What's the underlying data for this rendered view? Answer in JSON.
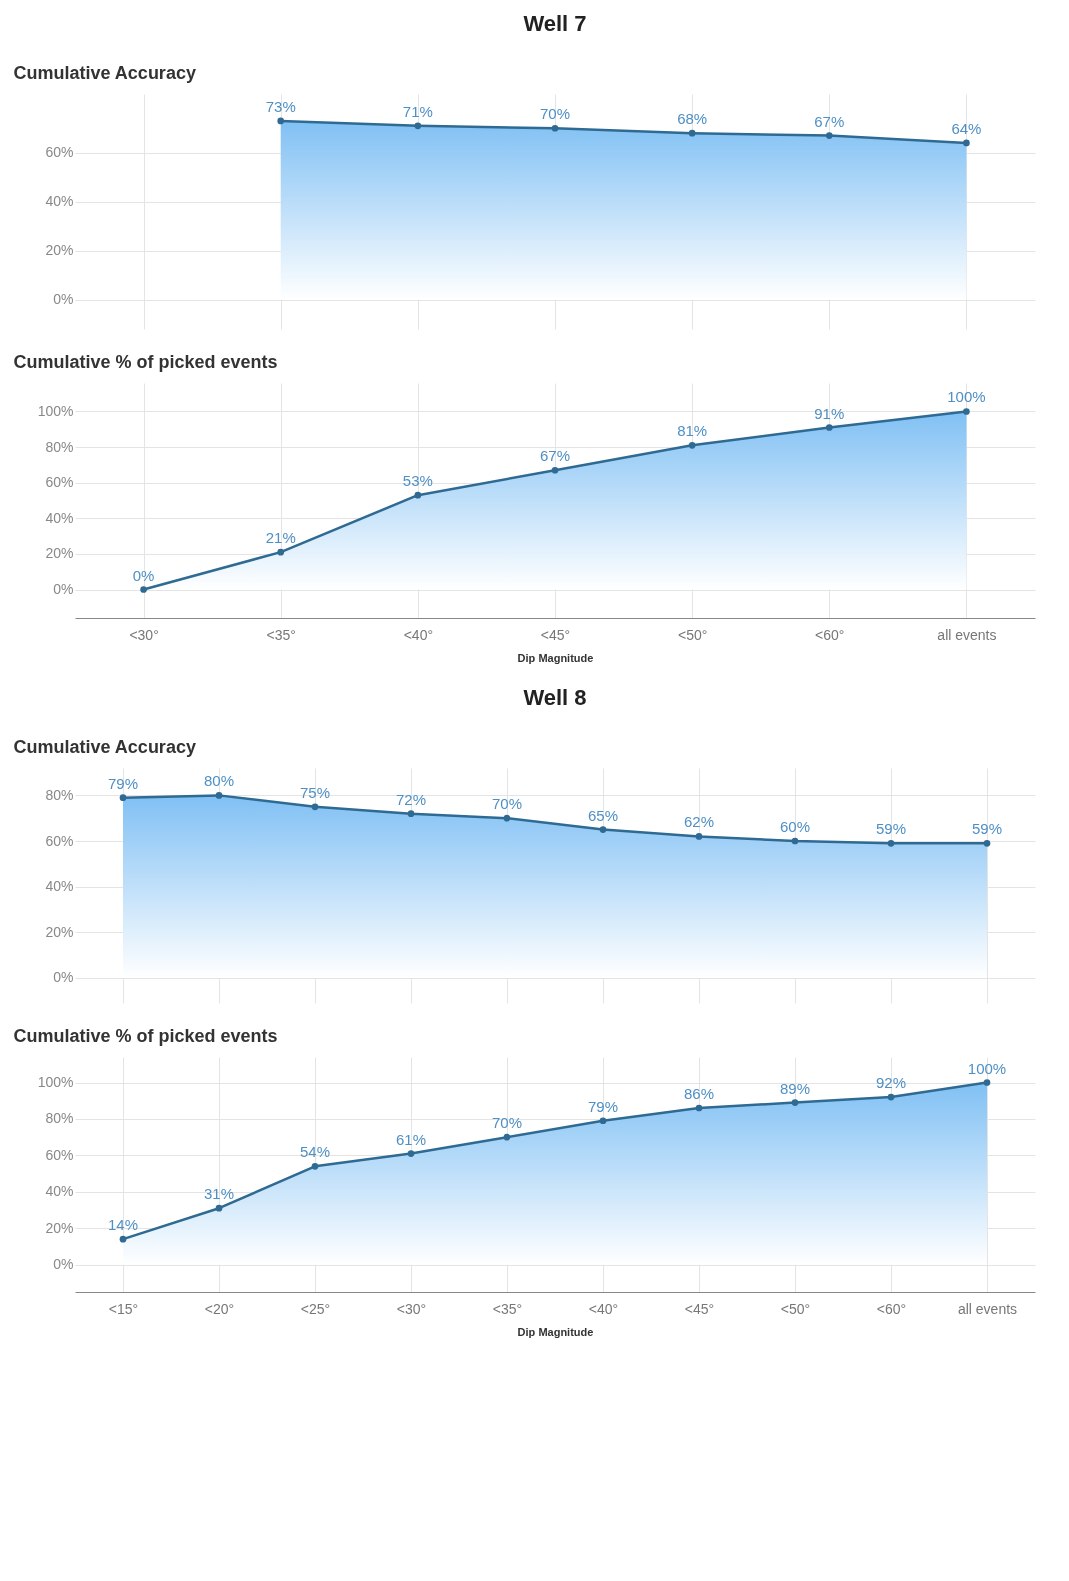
{
  "chart_data": [
    {
      "type": "area",
      "title": "Well 7",
      "ylabel": "Cumulative Accuracy",
      "categories": [
        null,
        null,
        null,
        null,
        null,
        null,
        null
      ],
      "values": [
        null,
        73,
        71,
        70,
        68,
        67,
        64
      ],
      "value_labels": [
        null,
        "73%",
        "71%",
        "70%",
        "68%",
        "67%",
        "64%"
      ],
      "color": "#2f6a93",
      "ylim": [
        -12,
        84
      ],
      "yticks": [
        {
          "value": 0,
          "label": "0%"
        },
        {
          "value": 20,
          "label": "20%"
        },
        {
          "value": 40,
          "label": "40%"
        },
        {
          "value": 60,
          "label": "60%"
        }
      ],
      "grid": true,
      "marker": "circle",
      "tick_labels": "y"
    },
    {
      "type": "area",
      "ylabel": "Cumulative % of picked events",
      "xlabel": "Dip Magnitude",
      "categories": [
        "<30°",
        "<35°",
        "<40°",
        "<45°",
        "<50°",
        "<60°",
        "all events"
      ],
      "values": [
        0,
        21,
        53,
        67,
        81,
        91,
        100
      ],
      "value_labels": [
        "0%",
        "21%",
        "53%",
        "67%",
        "81%",
        "91%",
        "100%"
      ],
      "color": "#2f6a93",
      "ylim": [
        -16,
        116
      ],
      "yticks": [
        {
          "value": 0,
          "label": "0%"
        },
        {
          "value": 20,
          "label": "20%"
        },
        {
          "value": 40,
          "label": "40%"
        },
        {
          "value": 60,
          "label": "60%"
        },
        {
          "value": 80,
          "label": "80%"
        },
        {
          "value": 100,
          "label": "100%"
        }
      ],
      "grid": true,
      "marker": "circle"
    },
    {
      "type": "area",
      "title": "Well 8",
      "ylabel": "Cumulative Accuracy",
      "categories": [
        null,
        null,
        null,
        null,
        null,
        null,
        null,
        null,
        null,
        null
      ],
      "values": [
        79,
        80,
        75,
        72,
        70,
        65,
        62,
        60,
        59,
        59
      ],
      "value_labels": [
        "79%",
        "80%",
        "75%",
        "72%",
        "70%",
        "65%",
        "62%",
        "60%",
        "59%",
        "59%"
      ],
      "color": "#2f6a93",
      "ylim": [
        -11,
        92
      ],
      "yticks": [
        {
          "value": 0,
          "label": "0%"
        },
        {
          "value": 20,
          "label": "20%"
        },
        {
          "value": 40,
          "label": "40%"
        },
        {
          "value": 60,
          "label": "60%"
        },
        {
          "value": 80,
          "label": "80%"
        }
      ],
      "grid": true,
      "marker": "circle",
      "tick_labels": "y"
    },
    {
      "type": "area",
      "ylabel": "Cumulative % of picked events",
      "xlabel": "Dip Magnitude",
      "categories": [
        "<15°",
        "<20°",
        "<25°",
        "<30°",
        "<35°",
        "<40°",
        "<45°",
        "<50°",
        "<60°",
        "all events"
      ],
      "values": [
        14,
        31,
        54,
        61,
        70,
        79,
        86,
        89,
        92,
        100
      ],
      "value_labels": [
        "14%",
        "31%",
        "54%",
        "61%",
        "70%",
        "79%",
        "86%",
        "89%",
        "92%",
        "100%"
      ],
      "color": "#2f6a93",
      "ylim": [
        -15,
        114
      ],
      "yticks": [
        {
          "value": 0,
          "label": "0%"
        },
        {
          "value": 20,
          "label": "20%"
        },
        {
          "value": 40,
          "label": "40%"
        },
        {
          "value": 60,
          "label": "60%"
        },
        {
          "value": 80,
          "label": "80%"
        },
        {
          "value": 100,
          "label": "100%"
        }
      ],
      "grid": true,
      "marker": "circle"
    }
  ]
}
